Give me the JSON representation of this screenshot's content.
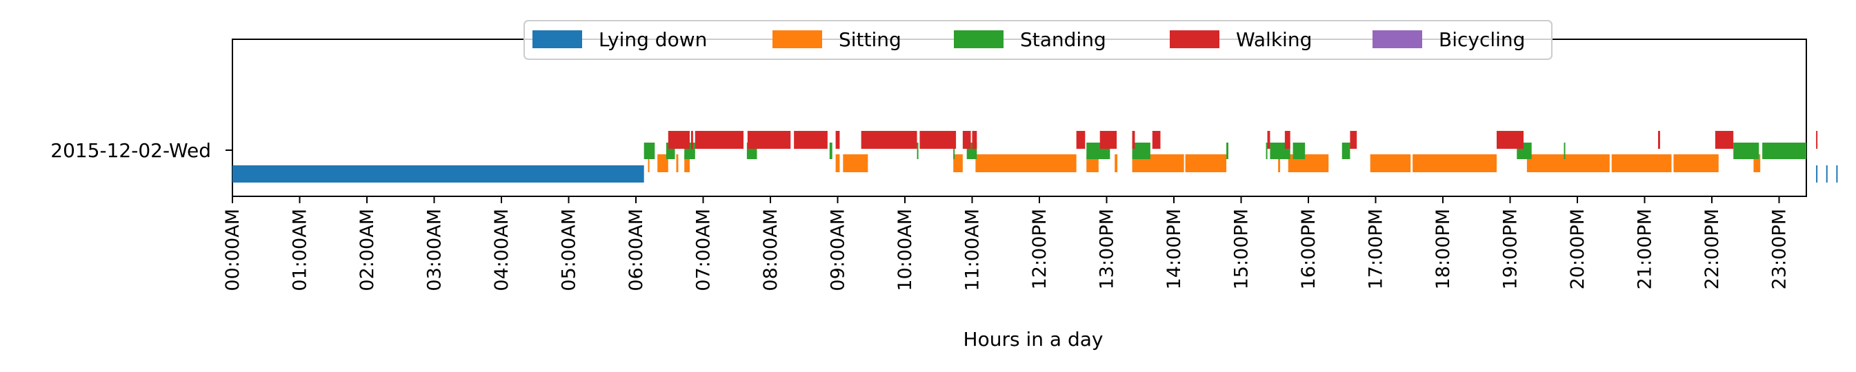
{
  "chart_data": {
    "type": "timeline",
    "title": "",
    "xlabel": "Hours in a day",
    "ylabel": "",
    "xlim": [
      0,
      24
    ],
    "row_label": "2015-12-02-Wed",
    "x_ticks": [
      "00:00AM",
      "01:00AM",
      "02:00AM",
      "03:00AM",
      "04:00AM",
      "05:00AM",
      "06:00AM",
      "07:00AM",
      "08:00AM",
      "09:00AM",
      "10:00AM",
      "11:00AM",
      "12:00PM",
      "13:00PM",
      "14:00PM",
      "15:00PM",
      "16:00PM",
      "17:00PM",
      "18:00PM",
      "19:00PM",
      "20:00PM",
      "21:00PM",
      "22:00PM",
      "23:00PM"
    ],
    "legend_position": "top-center",
    "series": [
      {
        "name": "Lying down",
        "color": "#1f77b4",
        "segments": [
          [
            0.0,
            6.12
          ],
          [
            23.55,
            23.66
          ],
          [
            23.7,
            23.81
          ],
          [
            23.85,
            23.96
          ]
        ]
      },
      {
        "name": "Sitting",
        "color": "#ff7f0e",
        "segments": [
          [
            6.18,
            6.2
          ],
          [
            6.32,
            6.48
          ],
          [
            6.6,
            6.63
          ],
          [
            6.72,
            6.8
          ],
          [
            8.97,
            9.03
          ],
          [
            9.08,
            9.45
          ],
          [
            10.72,
            10.86
          ],
          [
            11.05,
            12.55
          ],
          [
            12.7,
            12.88
          ],
          [
            13.12,
            13.16
          ],
          [
            13.38,
            14.15
          ],
          [
            14.17,
            14.78
          ],
          [
            15.55,
            15.58
          ],
          [
            15.7,
            16.3
          ],
          [
            16.92,
            17.52
          ],
          [
            17.55,
            18.8
          ],
          [
            19.25,
            20.48
          ],
          [
            20.51,
            21.4
          ],
          [
            21.43,
            22.1
          ],
          [
            22.62,
            22.72
          ]
        ]
      },
      {
        "name": "Standing",
        "color": "#2ca02c",
        "segments": [
          [
            6.12,
            6.28
          ],
          [
            6.45,
            6.58
          ],
          [
            6.72,
            6.88
          ],
          [
            7.65,
            7.8
          ],
          [
            8.88,
            8.92
          ],
          [
            10.18,
            10.2
          ],
          [
            10.72,
            10.74
          ],
          [
            10.92,
            11.07
          ],
          [
            12.7,
            13.05
          ],
          [
            13.38,
            13.65
          ],
          [
            14.78,
            14.81
          ],
          [
            15.37,
            15.39
          ],
          [
            15.43,
            15.73
          ],
          [
            15.77,
            15.95
          ],
          [
            16.5,
            16.62
          ],
          [
            19.1,
            19.32
          ],
          [
            19.8,
            19.82
          ],
          [
            22.32,
            22.7
          ],
          [
            22.75,
            23.65
          ]
        ]
      },
      {
        "name": "Walking",
        "color": "#d62728",
        "segments": [
          [
            6.48,
            6.8
          ],
          [
            6.82,
            6.85
          ],
          [
            6.88,
            7.6
          ],
          [
            7.66,
            8.3
          ],
          [
            8.35,
            8.85
          ],
          [
            8.97,
            9.03
          ],
          [
            9.35,
            10.18
          ],
          [
            10.22,
            10.76
          ],
          [
            10.86,
            10.98
          ],
          [
            11.0,
            11.07
          ],
          [
            12.55,
            12.68
          ],
          [
            12.9,
            13.15
          ],
          [
            13.38,
            13.42
          ],
          [
            13.68,
            13.8
          ],
          [
            15.39,
            15.43
          ],
          [
            15.65,
            15.73
          ],
          [
            16.62,
            16.72
          ],
          [
            18.8,
            19.2
          ],
          [
            21.2,
            21.23
          ],
          [
            22.05,
            22.32
          ],
          [
            23.55,
            23.58
          ]
        ]
      },
      {
        "name": "Bicycling",
        "color": "#9467bd",
        "segments": []
      }
    ]
  }
}
